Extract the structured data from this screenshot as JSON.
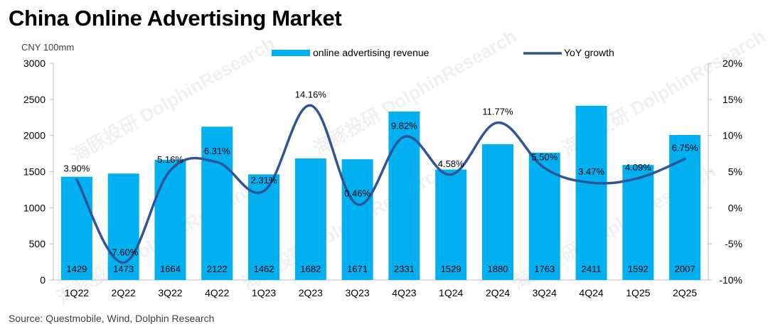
{
  "title": "China Online Advertising Market",
  "unit_label": "CNY 100mm",
  "source": "Source:   Questmobile, Wind, Dolphin Research",
  "watermark": "海豚投研 DolphinResearch",
  "chart_data": {
    "type": "bar",
    "categories": [
      "1Q22",
      "2Q22",
      "3Q22",
      "4Q22",
      "1Q23",
      "2Q23",
      "3Q23",
      "4Q23",
      "1Q24",
      "2Q24",
      "3Q24",
      "4Q24",
      "1Q25",
      "2Q25"
    ],
    "series": [
      {
        "name": "online advertising revenue",
        "type": "bar",
        "axis": "left",
        "color": "#00B0F0",
        "values": [
          1429,
          1473,
          1664,
          2122,
          1462,
          1682,
          1671,
          2331,
          1529,
          1880,
          1763,
          2411,
          1592,
          2007
        ],
        "labels": [
          "1429",
          "1473",
          "1664",
          "2122",
          "1462",
          "1682",
          "1671",
          "2331",
          "1529",
          "1880",
          "1763",
          "2411",
          "1592",
          "2007"
        ]
      },
      {
        "name": "YoY growth",
        "type": "line",
        "smooth": true,
        "axis": "right",
        "color": "#2F5597",
        "values": [
          3.9,
          -7.6,
          5.16,
          6.31,
          2.31,
          14.16,
          0.46,
          9.82,
          4.58,
          11.77,
          5.5,
          3.47,
          4.09,
          6.75
        ],
        "labels": [
          "3.90%",
          "-7.60%",
          "5.16%",
          "6.31%",
          "2.31%",
          "14.16%",
          "0.46%",
          "9.82%",
          "4.58%",
          "11.77%",
          "5.50%",
          "3.47%",
          "4.09%",
          "6.75%"
        ]
      }
    ],
    "y_left": {
      "min": 0,
      "max": 3000,
      "ticks": [
        0,
        500,
        1000,
        1500,
        2000,
        2500,
        3000
      ],
      "tick_labels": [
        "0",
        "500",
        "1000",
        "1500",
        "2000",
        "2500",
        "3000"
      ]
    },
    "y_right": {
      "min": -10,
      "max": 20,
      "ticks": [
        -10,
        -5,
        0,
        5,
        10,
        15,
        20
      ],
      "tick_labels": [
        "-10%",
        "-5%",
        "0%",
        "5%",
        "10%",
        "15%",
        "20%"
      ]
    },
    "grid": false,
    "legend": "top-center"
  }
}
